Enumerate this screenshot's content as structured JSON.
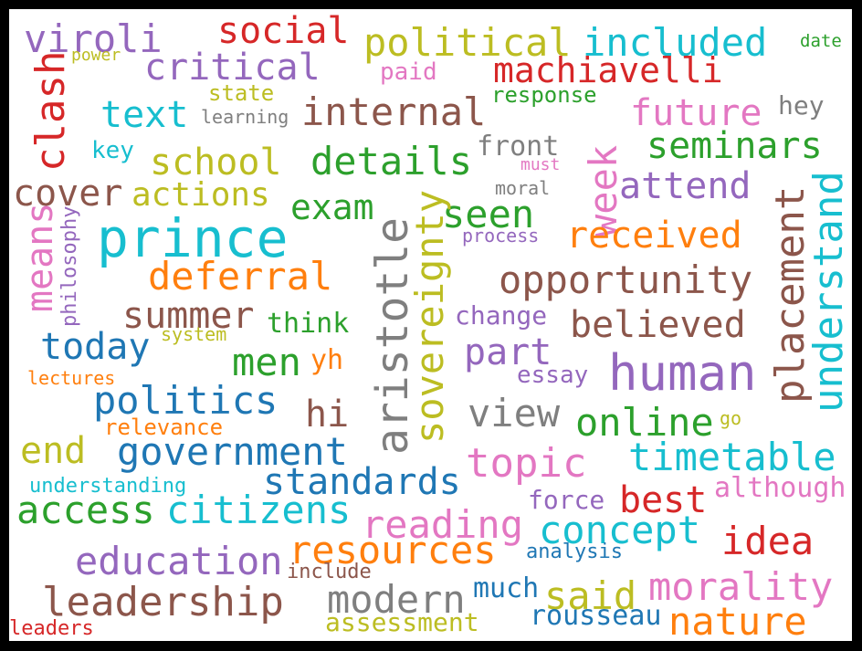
{
  "palette": {
    "purple": "#9467bd",
    "red": "#d62728",
    "olive": "#bcbd22",
    "cyan": "#17becf",
    "green": "#2ca02c",
    "orange": "#ff7f0e",
    "pink": "#e377c2",
    "brown": "#8c564b",
    "gray": "#7f7f7f",
    "blue": "#1f77b4"
  },
  "words": [
    "viroli",
    "social",
    "political",
    "included",
    "date",
    "power",
    "critical",
    "paid",
    "machiavelli",
    "clash",
    "state",
    "response",
    "text",
    "learning",
    "internal",
    "hey",
    "future",
    "key",
    "front",
    "seminars",
    "school",
    "details",
    "must",
    "cover",
    "actions",
    "moral",
    "attend",
    "week",
    "exam",
    "seen",
    "means",
    "philosophy",
    "prince",
    "process",
    "received",
    "placement",
    "understand",
    "deferral",
    "sovereignty",
    "aristotle",
    "opportunity",
    "summer",
    "change",
    "think",
    "believed",
    "system",
    "today",
    "part",
    "men",
    "yh",
    "human",
    "lectures",
    "essay",
    "politics",
    "hi",
    "view",
    "relevance",
    "online",
    "go",
    "end",
    "government",
    "timetable",
    "topic",
    "standards",
    "understanding",
    "although",
    "best",
    "force",
    "access",
    "citizens",
    "reading",
    "concept",
    "idea",
    "resources",
    "analysis",
    "education",
    "include",
    "morality",
    "much",
    "said",
    "modern",
    "leadership",
    "rousseau",
    "nature",
    "assessment",
    "leaders"
  ]
}
